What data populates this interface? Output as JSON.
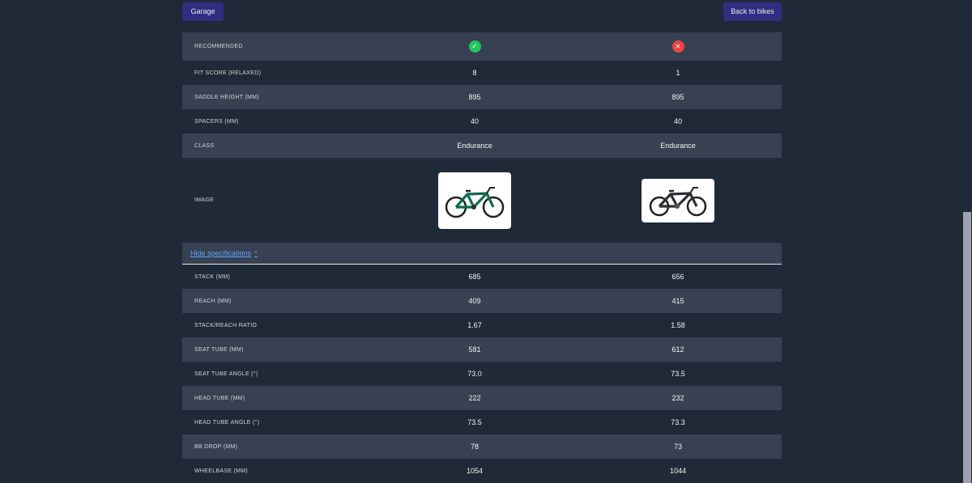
{
  "header": {
    "garage_label": "Garage",
    "back_label": "Back to bikes"
  },
  "rows_top": [
    {
      "label": "Recommended"
    },
    {
      "label": "Fit score (relaxed)",
      "v1": "8",
      "v2": "1"
    },
    {
      "label": "Saddle height (mm)",
      "v1": "895",
      "v2": "895"
    },
    {
      "label": "Spacers (mm)",
      "v1": "40",
      "v2": "40"
    },
    {
      "label": "Class",
      "v1": "Endurance",
      "v2": "Endurance"
    },
    {
      "label": "Image"
    }
  ],
  "recommended": {
    "bike1": "check-icon",
    "bike2": "x-icon",
    "ok_color": "#22c55e",
    "no_color": "#ef4444"
  },
  "specs_toggle_label": "Hide specifications",
  "specs": [
    {
      "label": "Stack (mm)",
      "v1": "685",
      "v2": "656"
    },
    {
      "label": "Reach (mm)",
      "v1": "409",
      "v2": "415"
    },
    {
      "label": "Stack/Reach ratio",
      "v1": "1.67",
      "v2": "1.58"
    },
    {
      "label": "Seat tube (mm)",
      "v1": "581",
      "v2": "612"
    },
    {
      "label": "Seat tube angle (°)",
      "v1": "73.0",
      "v2": "73.5"
    },
    {
      "label": "Head tube (mm)",
      "v1": "222",
      "v2": "232"
    },
    {
      "label": "Head tube angle (°)",
      "v1": "73.5",
      "v2": "73.3"
    },
    {
      "label": "BB drop (mm)",
      "v1": "78",
      "v2": "73"
    },
    {
      "label": "Wheelbase (mm)",
      "v1": "1054",
      "v2": "1044"
    }
  ]
}
